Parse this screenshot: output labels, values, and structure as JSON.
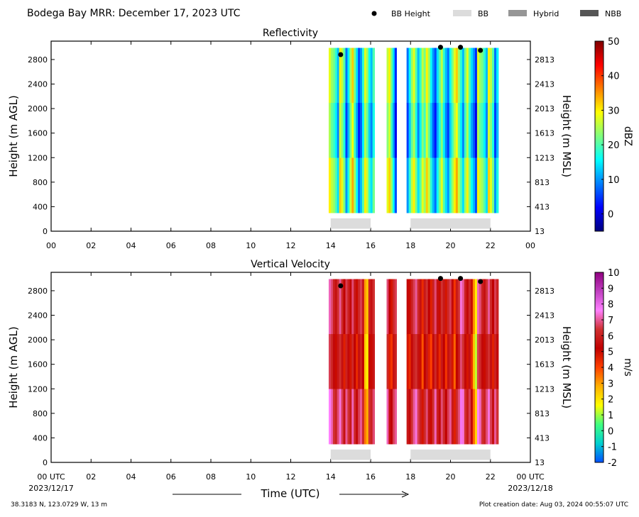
{
  "header": {
    "title": "Bodega Bay MRR:  December 17, 2023 UTC",
    "legend": [
      {
        "label": "BB Height",
        "kind": "dot",
        "color": "#000000"
      },
      {
        "label": "BB",
        "kind": "bar",
        "color": "#dcdcdc"
      },
      {
        "label": "Hybrid",
        "kind": "bar",
        "color": "#969696"
      },
      {
        "label": "NBB",
        "kind": "bar",
        "color": "#555555"
      }
    ]
  },
  "footer": {
    "location": "38.3183 N, 123.0729 W, 13 m",
    "creation": "Plot creation date: Aug 03, 2024 00:55:07 UTC",
    "xlabel": "Time (UTC)",
    "left_tick": "00 UTC",
    "left_date": "2023/12/17",
    "right_tick": "00 UTC",
    "right_date": "2023/12/18"
  },
  "chart_data": [
    {
      "type": "heatmap",
      "title": "Reflectivity",
      "ylabel": "Height (m AGL)",
      "ylabel_right": "Height (m MSL)",
      "xlim": [
        0,
        24
      ],
      "ylim": [
        0,
        3100
      ],
      "x_ticks": [
        "00",
        "02",
        "04",
        "06",
        "08",
        "10",
        "12",
        "14",
        "16",
        "18",
        "20",
        "22",
        "00"
      ],
      "y_ticks": [
        0,
        400,
        800,
        1200,
        1600,
        2000,
        2400,
        2800
      ],
      "y_ticks_right": [
        13,
        413,
        813,
        1213,
        1613,
        2013,
        2413,
        2813
      ],
      "colorbar": {
        "label": "dBZ",
        "min": -5,
        "max": 50,
        "ticks": [
          0,
          10,
          20,
          30,
          40,
          50
        ],
        "stops": [
          "#00007f",
          "#0000ff",
          "#007fff",
          "#00ffff",
          "#7fff7f",
          "#ffff00",
          "#ff7f00",
          "#ff0000",
          "#7f0000"
        ]
      },
      "data_spans_hours": [
        [
          13.9,
          16.2
        ],
        [
          16.8,
          17.3
        ],
        [
          17.8,
          22.4
        ]
      ],
      "column_profile": [
        28,
        24,
        22,
        18,
        12,
        30,
        26,
        20,
        8,
        15,
        25,
        32,
        22,
        14,
        6,
        10,
        18,
        28,
        24,
        16,
        12,
        20,
        26,
        30,
        22,
        14,
        4,
        8,
        16,
        24,
        28,
        20,
        12,
        18,
        26,
        22,
        30,
        24,
        16,
        10,
        6,
        14,
        20,
        26,
        18,
        12,
        8,
        16,
        22,
        28,
        32,
        24,
        18,
        12,
        22,
        28,
        20,
        14,
        10,
        4
      ],
      "bb_height": [
        {
          "x": 14.5,
          "y": 2880
        },
        {
          "x": 19.5,
          "y": 3000
        },
        {
          "x": 20.5,
          "y": 3000
        },
        {
          "x": 21.5,
          "y": 2950
        }
      ],
      "bb_segments": [
        [
          14.0,
          16.0
        ],
        [
          18.0,
          22.0
        ]
      ]
    },
    {
      "type": "heatmap",
      "title": "Vertical Velocity",
      "ylabel": "Height (m AGL)",
      "ylabel_right": "Height (m MSL)",
      "xlim": [
        0,
        24
      ],
      "ylim": [
        0,
        3100
      ],
      "x_ticks": [
        "00 UTC",
        "02",
        "04",
        "06",
        "08",
        "10",
        "12",
        "14",
        "16",
        "18",
        "20",
        "22",
        "00 UTC"
      ],
      "y_ticks": [
        0,
        400,
        800,
        1200,
        1600,
        2000,
        2400,
        2800
      ],
      "y_ticks_right": [
        13,
        413,
        813,
        1213,
        1613,
        2013,
        2413,
        2813
      ],
      "colorbar": {
        "label": "m/s",
        "min": -2,
        "max": 10,
        "ticks": [
          -2,
          -1,
          0,
          1,
          2,
          3,
          4,
          5,
          6,
          7,
          8,
          9,
          10
        ],
        "stops": [
          "#0050ff",
          "#00d0d0",
          "#40ff80",
          "#ffff00",
          "#ffb000",
          "#ff4000",
          "#c00000",
          "#d03030",
          "#ff80ff",
          "#c040c0",
          "#900080"
        ]
      },
      "data_spans_hours": [
        [
          13.9,
          16.2
        ],
        [
          16.8,
          17.3
        ],
        [
          17.8,
          22.4
        ]
      ],
      "column_profile": [
        7.2,
        6.8,
        6.0,
        5.6,
        6.4,
        7.0,
        6.2,
        5.2,
        6.6,
        6.0,
        5.4,
        6.8,
        5.8,
        5.0,
        6.2,
        6.6,
        5.8,
        3.0,
        2.4,
        6.0,
        5.6,
        6.4,
        6.8,
        5.2,
        4.8,
        6.2,
        6.6,
        5.4,
        5.0,
        6.0,
        6.6,
        7.0,
        6.2,
        5.6,
        4.4,
        5.8,
        6.4,
        5.2,
        4.6,
        6.0,
        6.8,
        5.6,
        5.0,
        6.4,
        5.8,
        4.8,
        6.2,
        6.6,
        5.4,
        4.2,
        5.8,
        6.4,
        7.4,
        7.0,
        6.0,
        5.4,
        6.2,
        5.0,
        3.2,
        1.8
      ],
      "bb_height": [
        {
          "x": 14.5,
          "y": 2880
        },
        {
          "x": 19.5,
          "y": 3000
        },
        {
          "x": 20.5,
          "y": 3000
        },
        {
          "x": 21.5,
          "y": 2950
        }
      ],
      "bb_segments": [
        [
          14.0,
          16.0
        ],
        [
          18.0,
          22.0
        ]
      ]
    }
  ]
}
